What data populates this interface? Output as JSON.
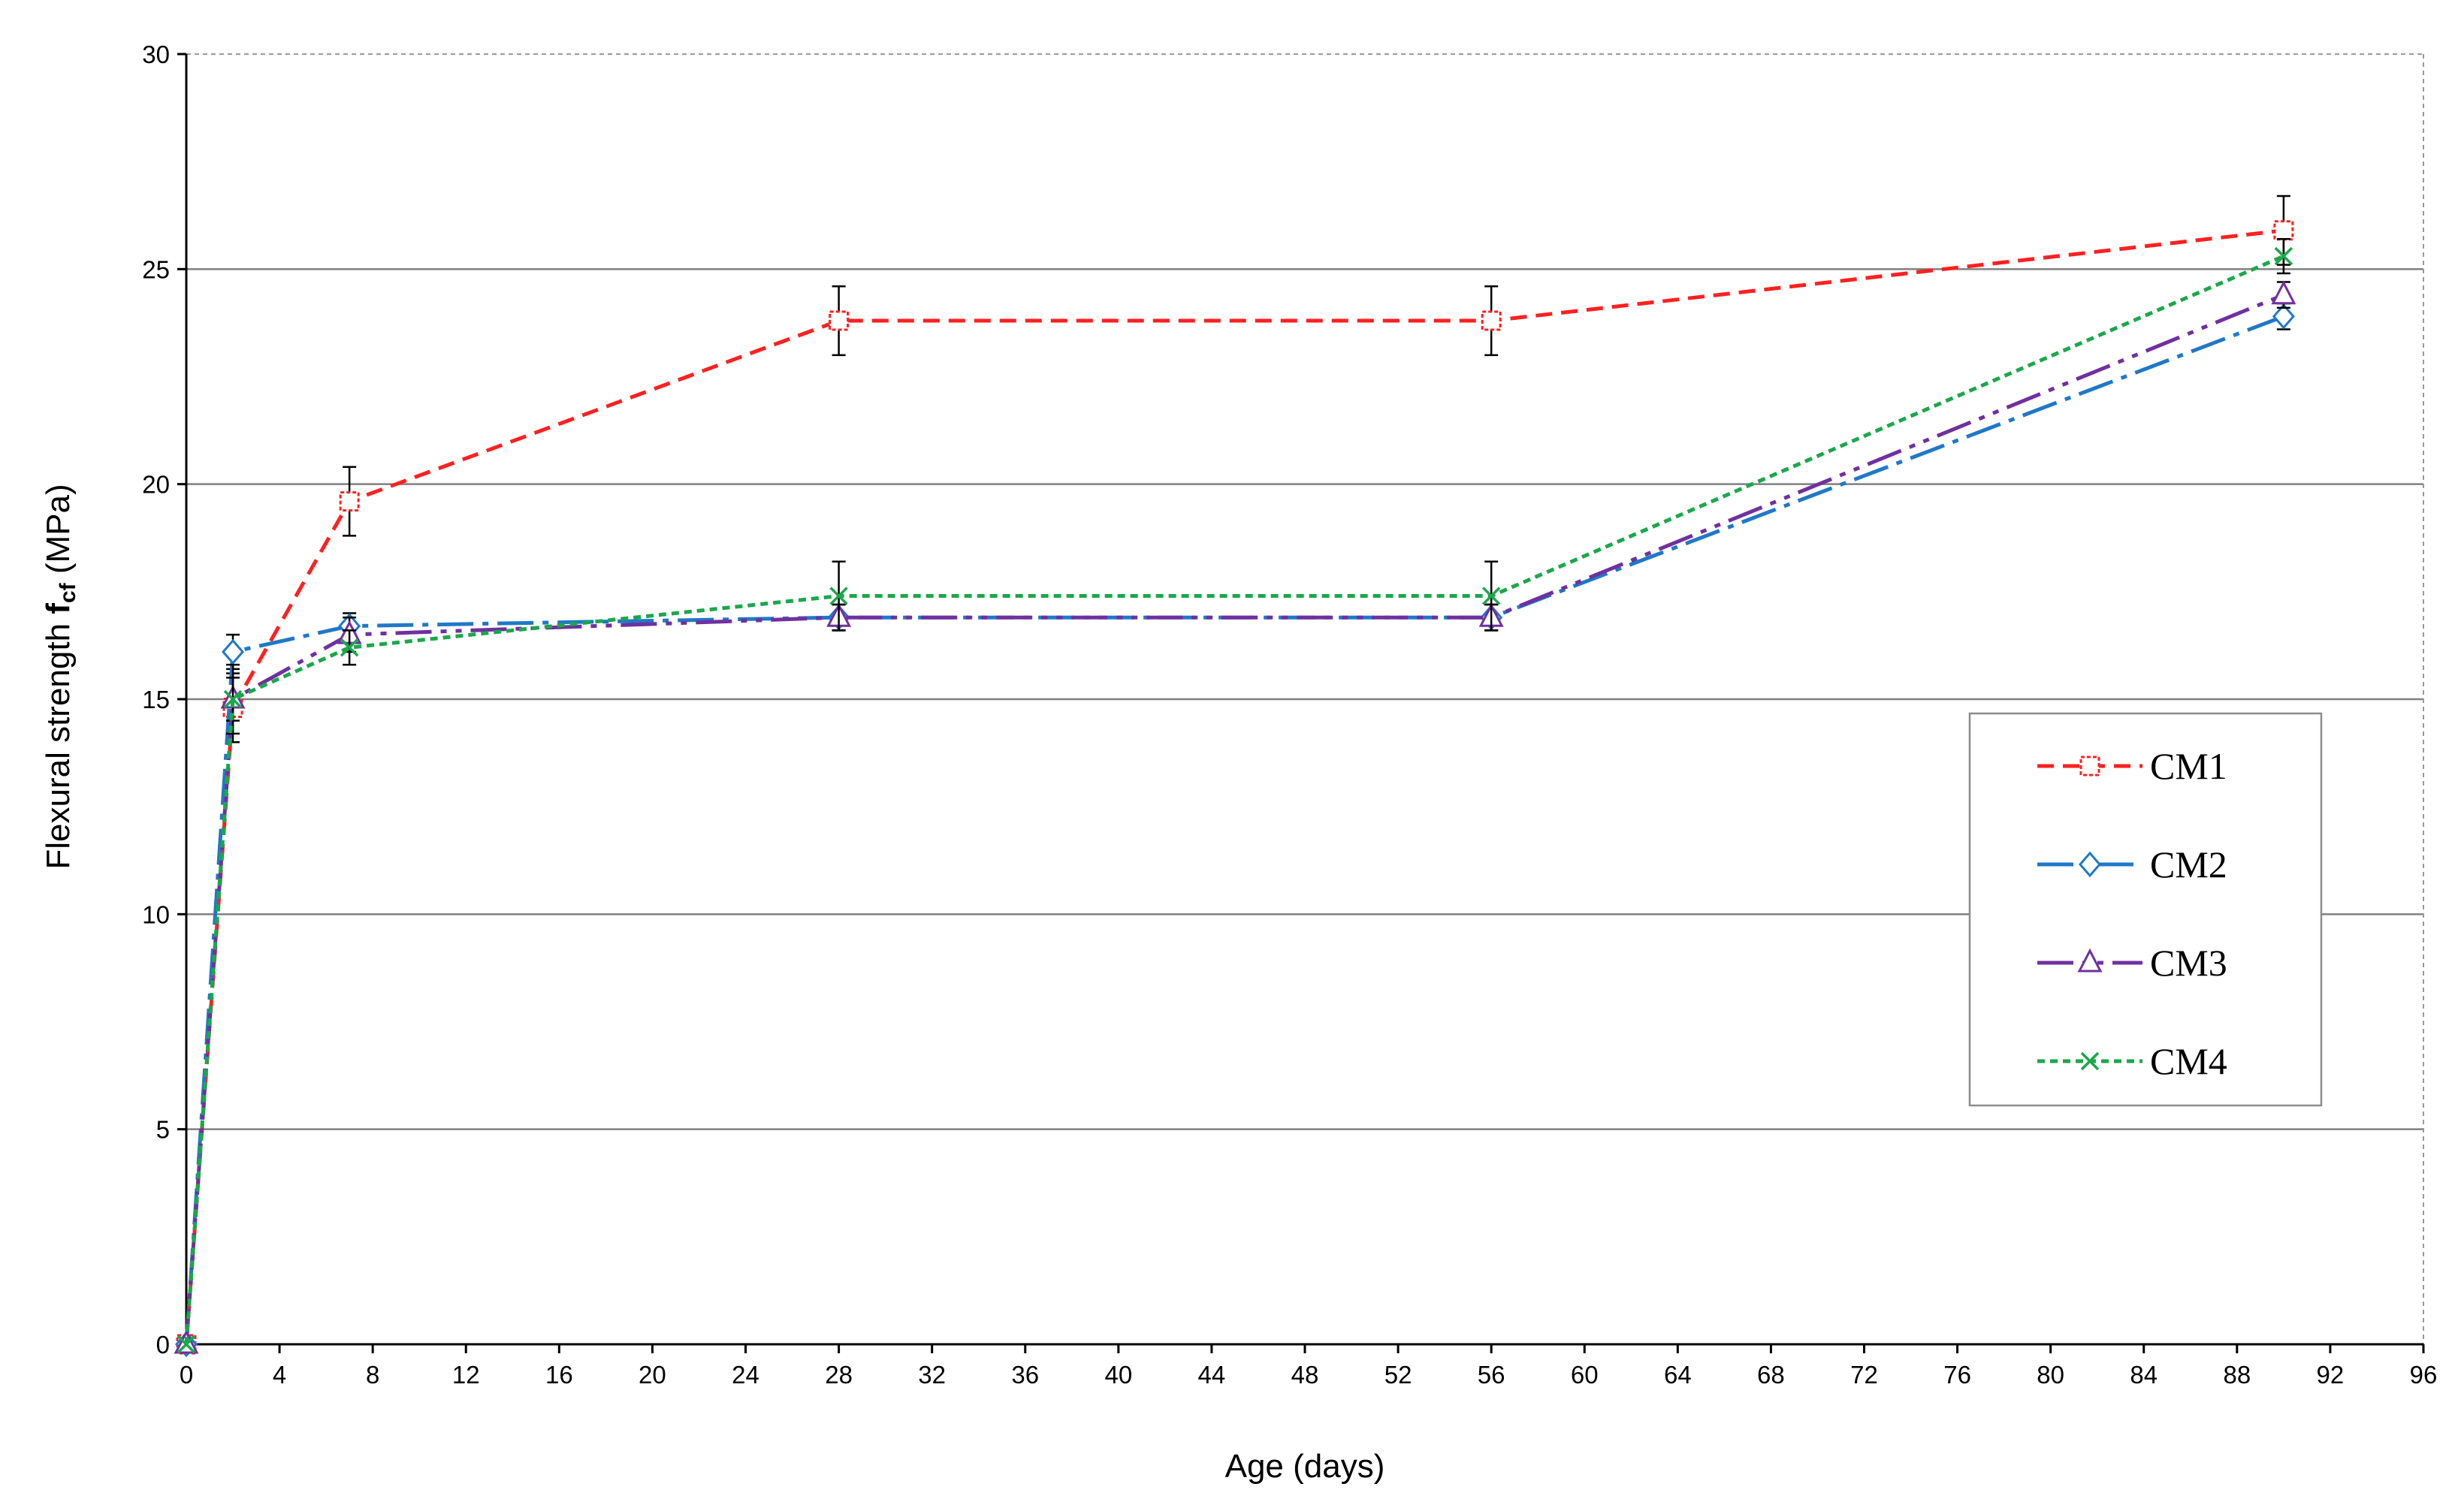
{
  "chart_data": {
    "type": "line",
    "xlabel": "Age (days)",
    "ylabel": {
      "prefix": "Flexural strength ",
      "symbol": "f",
      "subscript": "cf",
      "suffix": " (MPa)"
    },
    "xlim": [
      0,
      96
    ],
    "ylim": [
      0,
      30
    ],
    "x_ticks": [
      0,
      4,
      8,
      12,
      16,
      20,
      24,
      28,
      32,
      36,
      40,
      44,
      48,
      52,
      56,
      60,
      64,
      68,
      72,
      76,
      80,
      84,
      88,
      92,
      96
    ],
    "y_ticks": [
      0,
      5,
      10,
      15,
      20,
      25,
      30
    ],
    "grid": "horizontal",
    "legend_position": "right",
    "x": [
      0,
      2,
      7,
      28,
      56,
      90
    ],
    "series": [
      {
        "name": "CM1",
        "values": [
          0,
          14.8,
          19.6,
          23.8,
          23.8,
          25.9
        ],
        "error": [
          0,
          0.8,
          0.8,
          0.8,
          0.8,
          0.8
        ],
        "color": "#ff2020",
        "marker": "square"
      },
      {
        "name": "CM2",
        "values": [
          0,
          16.1,
          16.7,
          16.9,
          16.9,
          23.9
        ],
        "error": [
          0,
          0.4,
          0.3,
          0.3,
          0.3,
          0.3
        ],
        "color": "#1f78c8",
        "marker": "diamond"
      },
      {
        "name": "CM3",
        "values": [
          0,
          15.0,
          16.5,
          16.9,
          16.9,
          24.4
        ],
        "error": [
          0,
          0.5,
          0.4,
          0.3,
          0.3,
          0.3
        ],
        "color": "#7030a0",
        "marker": "triangle"
      },
      {
        "name": "CM4",
        "values": [
          0,
          15.0,
          16.2,
          17.4,
          17.4,
          25.3
        ],
        "error": [
          0,
          0.8,
          0.4,
          0.8,
          0.8,
          0.4
        ],
        "color": "#1aa84a",
        "marker": "x"
      }
    ]
  }
}
